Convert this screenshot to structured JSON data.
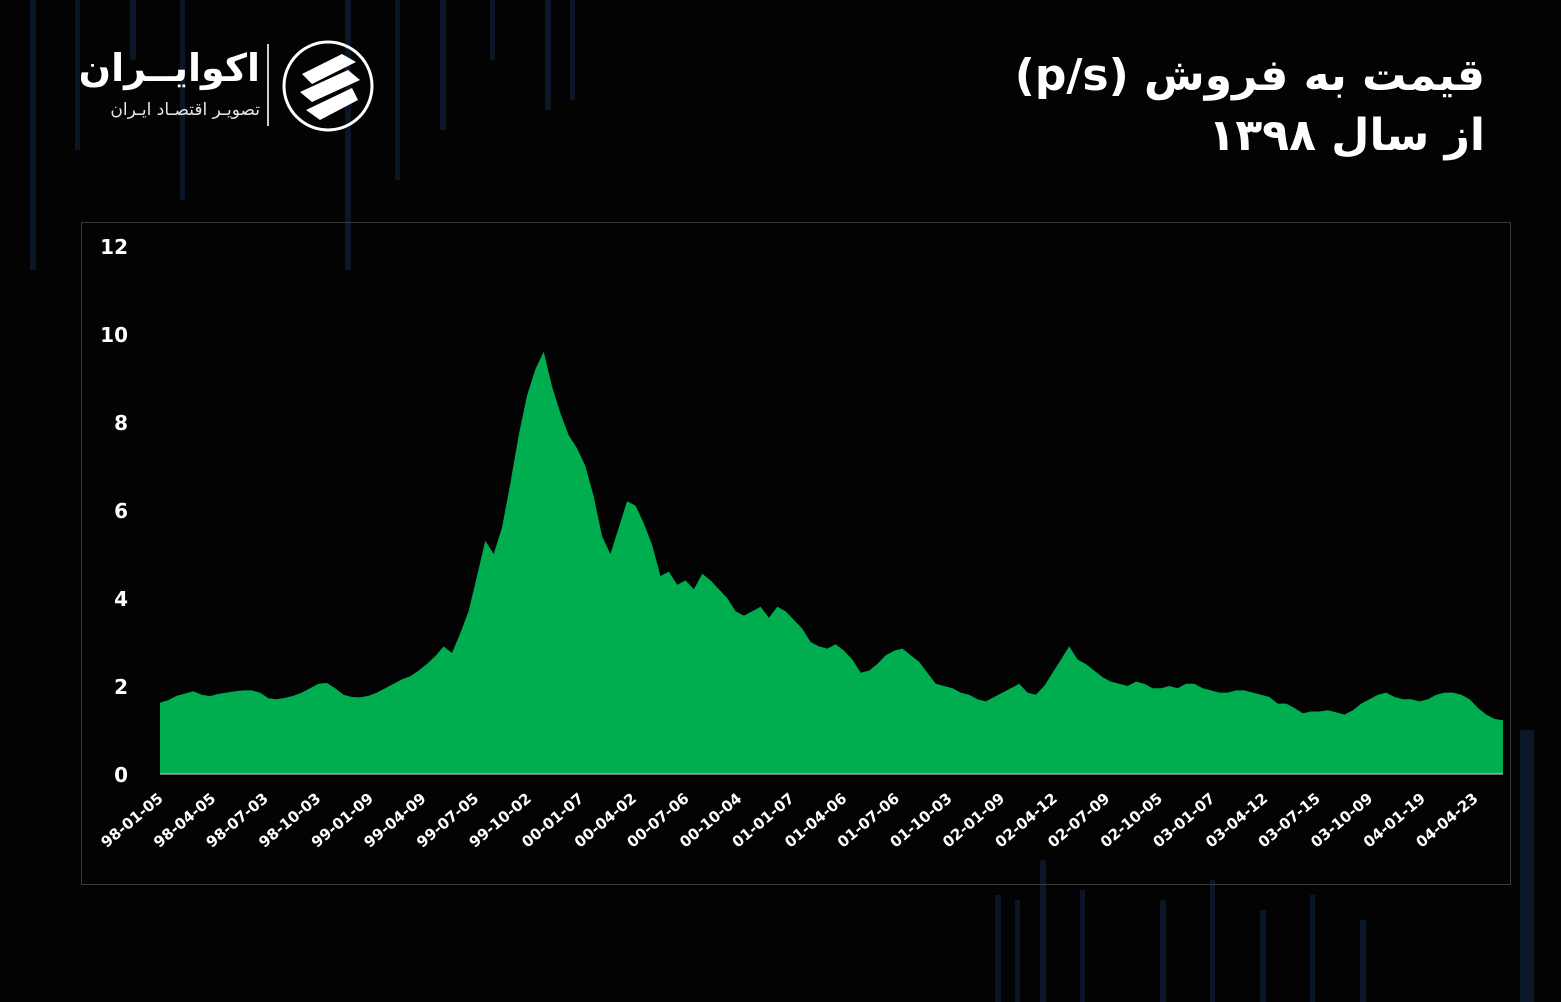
{
  "header": {
    "title_line1": "قیمت به فروش (p/s)",
    "title_line2": "از سال ۱۳۹۸"
  },
  "logo": {
    "name": "اکوایــران",
    "tagline": "تصویـر اقتصـاد ایـران",
    "icon": "ecoiran-logo-icon"
  },
  "colors": {
    "background": "#030303",
    "area_fill": "#00ad4f",
    "text": "#ffffff",
    "frame": "#3a3a3a"
  },
  "chart_data": {
    "type": "area",
    "title": "قیمت به فروش (p/s)",
    "subtitle": "از سال ۱۳۹۸",
    "xlabel": "",
    "ylabel": "",
    "ylim": [
      0,
      12
    ],
    "yticks": [
      0,
      2,
      4,
      6,
      8,
      10,
      12
    ],
    "ytick_labels": [
      "0",
      "2",
      "4",
      "6",
      "8",
      "10",
      "12"
    ],
    "xtick_labels": [
      "98-01-05",
      "98-04-05",
      "98-07-03",
      "98-10-03",
      "99-01-09",
      "99-04-09",
      "99-07-05",
      "99-10-02",
      "00-01-07",
      "00-04-02",
      "00-07-06",
      "00-10-04",
      "01-01-07",
      "01-04-06",
      "01-07-06",
      "01-10-03",
      "02-01-09",
      "02-04-12",
      "02-07-09",
      "02-10-05",
      "03-01-07",
      "03-04-12",
      "03-07-15",
      "03-10-09",
      "04-01-19",
      "04-04-23"
    ],
    "grid": false,
    "legend": "none",
    "series": [
      {
        "values": [
          1.62,
          1.68,
          1.78,
          1.83,
          1.88,
          1.8,
          1.77,
          1.82,
          1.85,
          1.88,
          1.9,
          1.9,
          1.85,
          1.72,
          1.7,
          1.73,
          1.78,
          1.85,
          1.95,
          2.05,
          2.07,
          1.95,
          1.8,
          1.75,
          1.74,
          1.78,
          1.85,
          1.95,
          2.05,
          2.15,
          2.22,
          2.35,
          2.5,
          2.68,
          2.9,
          2.75,
          3.2,
          3.7,
          4.5,
          5.3,
          5.0,
          5.6,
          6.6,
          7.7,
          8.6,
          9.2,
          9.6,
          8.8,
          8.2,
          7.7,
          7.4,
          7.0,
          6.3,
          5.4,
          5.0,
          5.6,
          6.2,
          6.1,
          5.7,
          5.2,
          4.5,
          4.6,
          4.3,
          4.4,
          4.2,
          4.55,
          4.4,
          4.2,
          4.0,
          3.7,
          3.6,
          3.7,
          3.8,
          3.55,
          3.8,
          3.7,
          3.5,
          3.3,
          3.0,
          2.9,
          2.85,
          2.95,
          2.8,
          2.6,
          2.3,
          2.35,
          2.5,
          2.7,
          2.8,
          2.85,
          2.7,
          2.55,
          2.3,
          2.05,
          2.0,
          1.95,
          1.85,
          1.8,
          1.7,
          1.65,
          1.75,
          1.85,
          1.95,
          2.05,
          1.85,
          1.8,
          2.0,
          2.3,
          2.6,
          2.9,
          2.6,
          2.5,
          2.35,
          2.2,
          2.1,
          2.05,
          2.0,
          2.1,
          2.05,
          1.95,
          1.95,
          2.0,
          1.95,
          2.05,
          2.05,
          1.95,
          1.9,
          1.85,
          1.85,
          1.9,
          1.9,
          1.85,
          1.8,
          1.75,
          1.6,
          1.6,
          1.5,
          1.38,
          1.42,
          1.42,
          1.45,
          1.4,
          1.35,
          1.45,
          1.6,
          1.7,
          1.8,
          1.85,
          1.75,
          1.7,
          1.7,
          1.65,
          1.7,
          1.8,
          1.85,
          1.85,
          1.8,
          1.7,
          1.5,
          1.35,
          1.25,
          1.22
        ]
      }
    ]
  }
}
